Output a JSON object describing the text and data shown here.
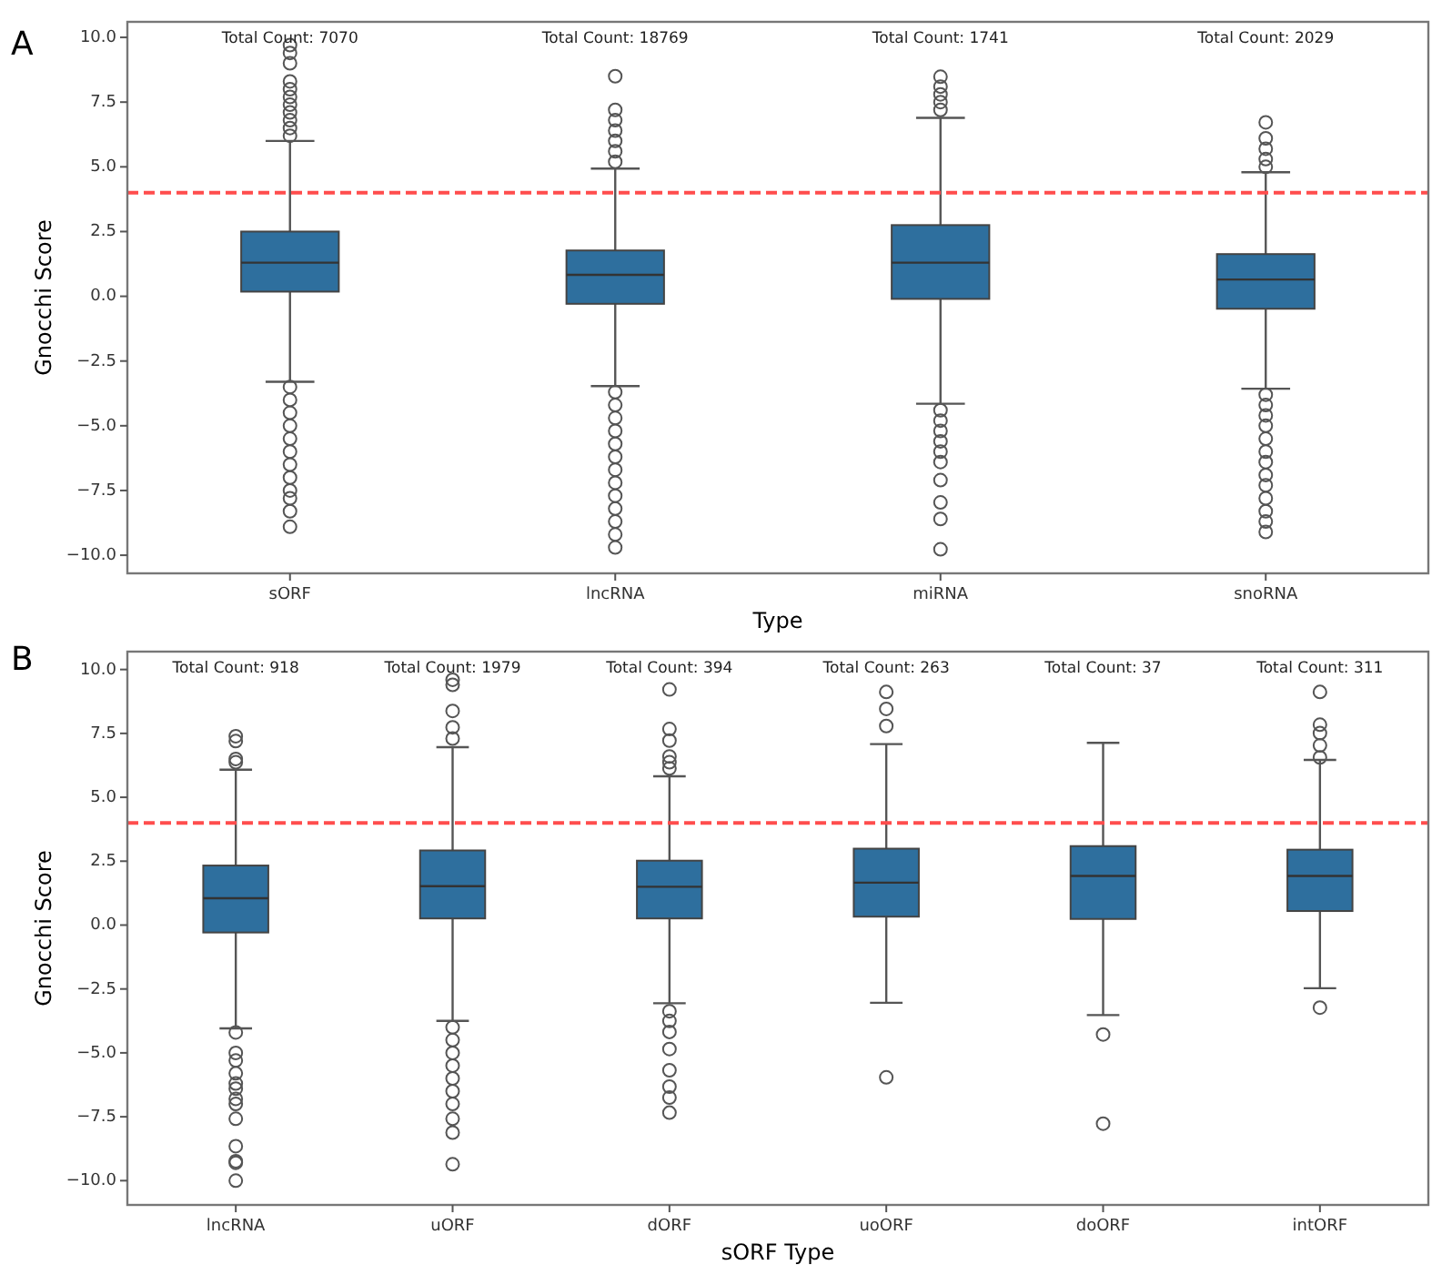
{
  "chart_data": [
    {
      "type": "box",
      "title": "A",
      "xlabel": "Type",
      "ylabel": "Gnocchi Score",
      "categories": [
        "sORF",
        "lncRNA",
        "miRNA",
        "snoRNA"
      ],
      "color": "#2e6f9e",
      "boxes": [
        {
          "low": -3.3,
          "q1": 0.18,
          "median": 1.3,
          "q3": 2.5,
          "high": 6.0,
          "outliers": [
            6.2,
            6.5,
            6.8,
            7.1,
            7.4,
            7.7,
            8.0,
            8.3,
            9.0,
            9.4,
            9.7,
            -3.5,
            -4.0,
            -4.5,
            -5.0,
            -5.5,
            -6.0,
            -6.5,
            -7.0,
            -7.5,
            -7.8,
            -8.3,
            -8.9
          ]
        },
        {
          "low": -3.47,
          "q1": -0.29,
          "median": 0.83,
          "q3": 1.77,
          "high": 4.93,
          "outliers": [
            5.2,
            5.6,
            6.0,
            6.4,
            6.8,
            7.2,
            8.5,
            -3.7,
            -4.2,
            -4.7,
            -5.2,
            -5.7,
            -6.2,
            -6.7,
            -7.2,
            -7.7,
            -8.2,
            -8.7,
            -9.2,
            -9.7
          ]
        },
        {
          "low": -4.15,
          "q1": -0.1,
          "median": 1.3,
          "q3": 2.75,
          "high": 6.89,
          "outliers": [
            7.2,
            7.5,
            7.8,
            8.1,
            8.48,
            -4.4,
            -4.8,
            -5.2,
            -5.6,
            -6.0,
            -6.4,
            -7.1,
            -7.96,
            -8.6,
            -9.77
          ]
        },
        {
          "low": -3.57,
          "q1": -0.48,
          "median": 0.65,
          "q3": 1.63,
          "high": 4.79,
          "outliers": [
            5.0,
            5.3,
            5.7,
            6.1,
            6.72,
            -3.8,
            -4.2,
            -4.6,
            -5.0,
            -5.5,
            -6.0,
            -6.4,
            -6.9,
            -7.3,
            -7.8,
            -8.3,
            -8.7,
            -9.1
          ]
        }
      ],
      "ylim": [
        -10.7,
        10.6
      ],
      "yticks": [
        {
          "value": -10,
          "label": "−10.0"
        },
        {
          "value": -7.5,
          "label": "−7.5"
        },
        {
          "value": -5,
          "label": "−5.0"
        },
        {
          "value": -2.5,
          "label": "−2.5"
        },
        {
          "value": 0,
          "label": "0.0"
        },
        {
          "value": 2.5,
          "label": "2.5"
        },
        {
          "value": 5,
          "label": "5.0"
        },
        {
          "value": 7.5,
          "label": "7.5"
        },
        {
          "value": 10,
          "label": "10.0"
        }
      ],
      "ref_lines": [
        {
          "axis": "y",
          "value": 4,
          "color": "#ff4d4d",
          "line_style": "dashed"
        }
      ],
      "annotations": [
        "Total Count: 7070",
        "Total Count: 18769",
        "Total Count: 1741",
        "Total Count: 2029"
      ]
    },
    {
      "type": "box",
      "title": "B",
      "xlabel": "sORF Type",
      "ylabel": "Gnocchi Score",
      "categories": [
        "lncRNA",
        "uORF",
        "dORF",
        "uoORF",
        "doORF",
        "intORF"
      ],
      "color": "#2e6f9e",
      "boxes": [
        {
          "low": -4.04,
          "q1": -0.29,
          "median": 1.05,
          "q3": 2.33,
          "high": 6.08,
          "outliers": [
            6.37,
            6.5,
            7.2,
            7.39,
            -4.2,
            -5.0,
            -5.3,
            -5.8,
            -6.2,
            -6.4,
            -6.8,
            -7.0,
            -7.58,
            -8.65,
            -9.24,
            -9.3,
            -10.0
          ]
        },
        {
          "low": -3.75,
          "q1": 0.26,
          "median": 1.52,
          "q3": 2.92,
          "high": 6.96,
          "outliers": [
            7.3,
            7.74,
            8.38,
            9.4,
            9.6,
            -4.0,
            -4.5,
            -5.0,
            -5.5,
            -6.0,
            -6.5,
            -7.0,
            -7.58,
            -8.12,
            -9.36
          ]
        },
        {
          "low": -3.06,
          "q1": 0.26,
          "median": 1.5,
          "q3": 2.52,
          "high": 5.82,
          "outliers": [
            6.13,
            6.37,
            6.6,
            7.22,
            7.67,
            9.22,
            -3.37,
            -3.75,
            -4.18,
            -4.85,
            -5.68,
            -6.32,
            -6.75,
            -7.34
          ]
        },
        {
          "low": -3.04,
          "q1": 0.33,
          "median": 1.66,
          "q3": 2.99,
          "high": 7.08,
          "outliers": [
            7.79,
            8.46,
            9.12,
            -5.96
          ]
        },
        {
          "low": -3.52,
          "q1": 0.24,
          "median": 1.92,
          "q3": 3.09,
          "high": 7.13,
          "outliers": [
            -4.28,
            -7.77
          ]
        },
        {
          "low": -2.47,
          "q1": 0.55,
          "median": 1.92,
          "q3": 2.95,
          "high": 6.46,
          "outliers": [
            6.56,
            7.03,
            7.51,
            7.84,
            9.12,
            -3.23
          ]
        }
      ],
      "ylim": [
        -10.95,
        10.7
      ],
      "yticks": [
        {
          "value": -10,
          "label": "−10.0"
        },
        {
          "value": -7.5,
          "label": "−7.5"
        },
        {
          "value": -5,
          "label": "−5.0"
        },
        {
          "value": -2.5,
          "label": "−2.5"
        },
        {
          "value": 0,
          "label": "0.0"
        },
        {
          "value": 2.5,
          "label": "2.5"
        },
        {
          "value": 5,
          "label": "5.0"
        },
        {
          "value": 7.5,
          "label": "7.5"
        },
        {
          "value": 10,
          "label": "10.0"
        }
      ],
      "ref_lines": [
        {
          "axis": "y",
          "value": 4,
          "color": "#ff4d4d",
          "line_style": "dashed"
        }
      ],
      "annotations": [
        "Total Count: 918",
        "Total Count: 1979",
        "Total Count: 394",
        "Total Count: 263",
        "Total Count: 37",
        "Total Count: 311"
      ]
    }
  ]
}
